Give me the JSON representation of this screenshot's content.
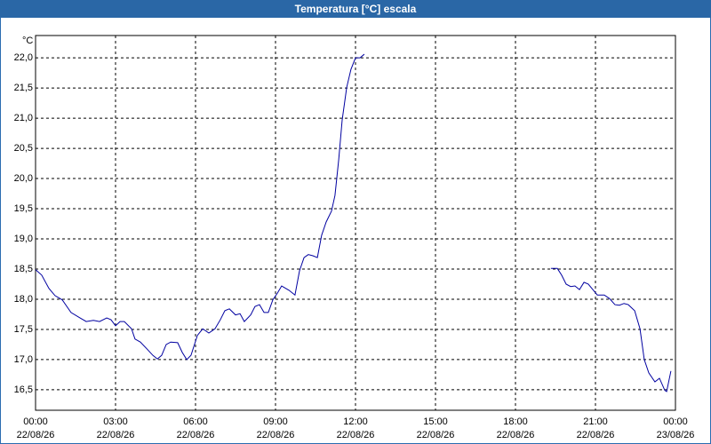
{
  "chart_data": {
    "type": "line",
    "title": "Temperatura [°C] escala",
    "y_label": "°C",
    "x": [
      0,
      0.23,
      0.5,
      0.73,
      1,
      1.33,
      1.67,
      1.9,
      2.17,
      2.4,
      2.67,
      2.83,
      3,
      3.17,
      3.33,
      3.6,
      3.73,
      3.93,
      4.17,
      4.4,
      4.57,
      4.73,
      4.9,
      5.07,
      5.33,
      5.5,
      5.67,
      5.83,
      6.07,
      6.27,
      6.5,
      6.73,
      6.93,
      7.1,
      7.27,
      7.5,
      7.67,
      7.83,
      8.07,
      8.23,
      8.4,
      8.57,
      8.73,
      8.9,
      9.07,
      9.23,
      9.5,
      9.73,
      9.9,
      10.07,
      10.23,
      10.4,
      10.57,
      10.73,
      10.9,
      11.1,
      11.23,
      11.37,
      11.5,
      11.67,
      11.83,
      12,
      12.17,
      12.33,
      15,
      19.33,
      19.57,
      19.73,
      19.9,
      20.07,
      20.23,
      20.4,
      20.57,
      20.73,
      20.9,
      21.07,
      21.33,
      21.53,
      21.73,
      21.9,
      22.07,
      22.23,
      22.47,
      22.67,
      22.83,
      23,
      23.23,
      23.4,
      23.6,
      23.67,
      23.83
    ],
    "series": [
      {
        "color": "#0000a0",
        "values": [
          18.49,
          18.4,
          18.18,
          18.06,
          17.99,
          17.78,
          17.69,
          17.63,
          17.65,
          17.63,
          17.69,
          17.66,
          17.56,
          17.63,
          17.63,
          17.51,
          17.34,
          17.29,
          17.18,
          17.07,
          17.01,
          17.07,
          17.25,
          17.29,
          17.28,
          17.12,
          17.0,
          17.07,
          17.4,
          17.51,
          17.44,
          17.51,
          17.66,
          17.81,
          17.84,
          17.74,
          17.76,
          17.63,
          17.74,
          17.88,
          17.91,
          17.78,
          17.78,
          17.99,
          18.1,
          18.22,
          18.15,
          18.07,
          18.47,
          18.69,
          18.74,
          18.72,
          18.69,
          19.06,
          19.28,
          19.46,
          19.72,
          20.31,
          20.97,
          21.51,
          21.81,
          22.0,
          22.0,
          22.06,
          null,
          18.51,
          18.51,
          18.4,
          18.25,
          18.21,
          18.22,
          18.16,
          18.28,
          18.25,
          18.16,
          18.07,
          18.07,
          18.01,
          17.91,
          17.9,
          17.93,
          17.91,
          17.81,
          17.51,
          17.0,
          16.78,
          16.63,
          16.69,
          16.49,
          16.47,
          16.81
        ]
      }
    ],
    "xlim": [
      0,
      24
    ],
    "xticks": [
      {
        "value": 0,
        "label": "00:00 22/08/26"
      },
      {
        "value": 3,
        "label": "03:00 22/08/26"
      },
      {
        "value": 6,
        "label": "06:00 22/08/26"
      },
      {
        "value": 9,
        "label": "09:00 22/08/26"
      },
      {
        "value": 12,
        "label": "12:00 22/08/26"
      },
      {
        "value": 15,
        "label": "15:00 22/08/26"
      },
      {
        "value": 18,
        "label": "18:00 22/08/26"
      },
      {
        "value": 21,
        "label": "21:00 22/08/26"
      },
      {
        "value": 24,
        "label": "00:00 23/08/26"
      }
    ],
    "ylim": [
      16.16,
      22.37
    ],
    "yticks": [
      {
        "value": 16.5,
        "label": "16,5"
      },
      {
        "value": 17,
        "label": "17,0"
      },
      {
        "value": 17.5,
        "label": "17,5"
      },
      {
        "value": 18,
        "label": "18,0"
      },
      {
        "value": 18.5,
        "label": "18,5"
      },
      {
        "value": 19,
        "label": "19,0"
      },
      {
        "value": 19.5,
        "label": "19,5"
      },
      {
        "value": 20,
        "label": "20,0"
      },
      {
        "value": 20.5,
        "label": "20,5"
      },
      {
        "value": 21,
        "label": "21,0"
      },
      {
        "value": 21.5,
        "label": "21,5"
      },
      {
        "value": 22,
        "label": "22,0"
      }
    ],
    "grid": true
  }
}
